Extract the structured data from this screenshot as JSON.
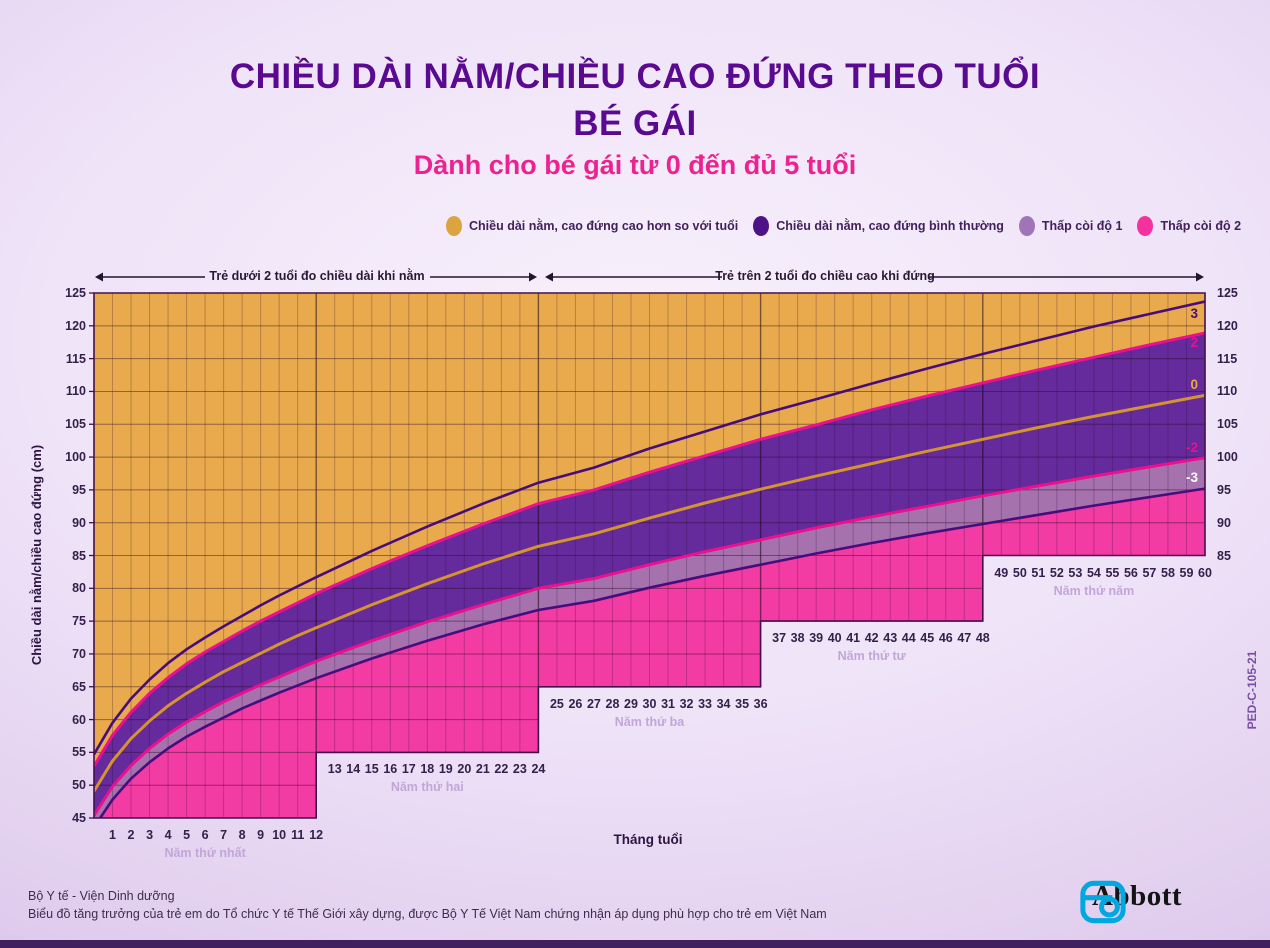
{
  "header": {
    "title_line1": "CHIỀU DÀI NẰM/CHIỀU CAO ĐỨNG THEO TUỔI",
    "title_line2": "BÉ GÁI",
    "subtitle": "Dành cho bé gái từ 0 đến đủ 5 tuổi",
    "title_color": "#5a0a90",
    "subtitle_color": "#ec2290"
  },
  "legend": {
    "items": [
      {
        "label": "Chiều dài nằm, cao đứng cao hơn so với tuổi",
        "color": "#dca440"
      },
      {
        "label": "Chiều dài nằm, cao đứng bình thường",
        "color": "#4e1287"
      },
      {
        "label": "Thấp còi độ 1",
        "color": "#9f74b8"
      },
      {
        "label": "Thấp còi độ 2",
        "color": "#f3319f"
      }
    ]
  },
  "annotations": {
    "arrow_left": "Trẻ dưới 2 tuổi đo chiều dài khi nằm",
    "arrow_right": "Trẻ trên 2 tuổi đo chiều cao khi đứng"
  },
  "footer": {
    "credit_line1": "Bộ Y tế - Viện Dinh dưỡng",
    "credit_line2": "Biểu đồ tăng trưởng của trẻ em do Tổ chức Y tế Thế Giới xây dựng, được Bộ Y Tế Việt Nam chứng nhận áp dụng phù hợp cho trẻ em Việt Nam",
    "doc_code": "PED-C-105-21",
    "brand": "Abbott",
    "brand_logo_color": "#00a7e1"
  },
  "chart_data": {
    "type": "area",
    "title": "Chiều dài nằm/Chiều cao đứng theo tuổi - Bé gái (0 đến đủ 5 tuổi)",
    "xlabel": "Tháng tuổi",
    "ylabel": "Chiều dài nằm/chiều cao đứng (cm)",
    "xlim": [
      0,
      60
    ],
    "ylim": [
      45,
      125
    ],
    "grid": true,
    "y_ticks_left": [
      125,
      120,
      115,
      110,
      105,
      100,
      95,
      90,
      85,
      80,
      75,
      70,
      65,
      60,
      55,
      50,
      45
    ],
    "y_ticks_right": [
      125,
      120,
      115,
      110,
      105,
      100,
      95,
      90,
      85
    ],
    "months": [
      0,
      1,
      2,
      3,
      4,
      5,
      6,
      7,
      8,
      9,
      10,
      11,
      12,
      15,
      18,
      21,
      24,
      27,
      30,
      33,
      36,
      39,
      42,
      45,
      48,
      51,
      54,
      57,
      60
    ],
    "series": [
      {
        "name": "+3",
        "z": 3,
        "color": "#470d7d",
        "values": [
          54.7,
          59.5,
          63.2,
          66.1,
          68.6,
          70.7,
          72.5,
          74.2,
          75.8,
          77.4,
          78.9,
          80.3,
          81.7,
          85.7,
          89.4,
          92.9,
          96.1,
          98.4,
          101.3,
          103.9,
          106.5,
          108.8,
          111.2,
          113.5,
          115.7,
          117.8,
          119.9,
          121.8,
          123.7
        ]
      },
      {
        "name": "+2",
        "z": 2,
        "color": "#ec1090",
        "values": [
          52.9,
          57.6,
          61.1,
          64.0,
          66.4,
          68.5,
          70.3,
          71.9,
          73.5,
          75.0,
          76.4,
          77.8,
          79.2,
          83.0,
          86.5,
          89.8,
          92.9,
          95.0,
          97.7,
          100.2,
          102.7,
          104.9,
          107.2,
          109.3,
          111.3,
          113.3,
          115.2,
          117.1,
          118.9
        ]
      },
      {
        "name": "median",
        "z": 0,
        "color": "#d4952f",
        "values": [
          49.1,
          53.7,
          57.1,
          59.8,
          62.1,
          64.0,
          65.7,
          67.3,
          68.7,
          70.1,
          71.5,
          72.8,
          74.0,
          77.5,
          80.7,
          83.7,
          86.4,
          88.3,
          90.7,
          93.0,
          95.1,
          97.1,
          99.0,
          100.9,
          102.7,
          104.5,
          106.2,
          107.8,
          109.4
        ]
      },
      {
        "name": "-2",
        "z": -2,
        "color": "#ec1090",
        "values": [
          45.4,
          49.8,
          53.0,
          55.6,
          57.8,
          59.6,
          61.2,
          62.7,
          64.0,
          65.3,
          66.5,
          67.7,
          68.9,
          72.0,
          74.9,
          77.5,
          80.0,
          81.5,
          83.6,
          85.6,
          87.4,
          89.2,
          90.9,
          92.5,
          94.1,
          95.6,
          97.1,
          98.5,
          99.9
        ]
      },
      {
        "name": "-3",
        "z": -3,
        "color": "#470d7d",
        "values": [
          43.6,
          47.8,
          51.0,
          53.5,
          55.6,
          57.4,
          58.9,
          60.3,
          61.7,
          62.9,
          64.1,
          65.2,
          66.3,
          69.3,
          72.0,
          74.5,
          76.7,
          78.1,
          80.1,
          81.9,
          83.6,
          85.3,
          86.9,
          88.4,
          89.8,
          91.2,
          92.6,
          93.9,
          95.2
        ]
      }
    ],
    "zones": [
      {
        "label": "Chiều dài nằm, cao đứng cao hơn so với tuổi",
        "between": [
          "+2",
          "top"
        ],
        "color": "#e9a94d"
      },
      {
        "label": "Chiều dài nằm, cao đứng bình thường",
        "between": [
          "-2",
          "+2"
        ],
        "color": "#652a9c"
      },
      {
        "label": "Thấp còi độ 1",
        "between": [
          "-3",
          "-2"
        ],
        "color": "#a572ae"
      },
      {
        "label": "Thấp còi độ 2",
        "between": [
          "bottom",
          "-3"
        ],
        "color": "#f23ba3"
      }
    ],
    "x_groups": [
      {
        "name": "Năm thứ nhất",
        "months": [
          1,
          2,
          3,
          4,
          5,
          6,
          7,
          8,
          9,
          10,
          11,
          12
        ],
        "bottom_cm": 45
      },
      {
        "name": "Năm thứ hai",
        "months": [
          13,
          14,
          15,
          16,
          17,
          18,
          19,
          20,
          21,
          22,
          23,
          24
        ],
        "bottom_cm": 55
      },
      {
        "name": "Năm thứ ba",
        "months": [
          25,
          26,
          27,
          28,
          29,
          30,
          31,
          32,
          33,
          34,
          35,
          36
        ],
        "bottom_cm": 65
      },
      {
        "name": "Năm thứ tư",
        "months": [
          37,
          38,
          39,
          40,
          41,
          42,
          43,
          44,
          45,
          46,
          47,
          48
        ],
        "bottom_cm": 75
      },
      {
        "name": "Năm thứ năm",
        "months": [
          49,
          50,
          51,
          52,
          53,
          54,
          55,
          56,
          57,
          58,
          59,
          60
        ],
        "bottom_cm": 85
      }
    ],
    "right_curve_labels": [
      {
        "text": "3",
        "series": "+3",
        "dy": 12,
        "color": "#470d7d"
      },
      {
        "text": "2",
        "series": "+2",
        "dy": 10,
        "color": "#ec1090"
      },
      {
        "text": "0",
        "series": "median",
        "dy": -10,
        "color": "#eda73b"
      },
      {
        "text": "-2",
        "series": "-2",
        "dy": -10,
        "color": "#ec1090"
      },
      {
        "text": "-3",
        "series": "-3",
        "dy": -11,
        "color": "#ffffff"
      }
    ]
  }
}
